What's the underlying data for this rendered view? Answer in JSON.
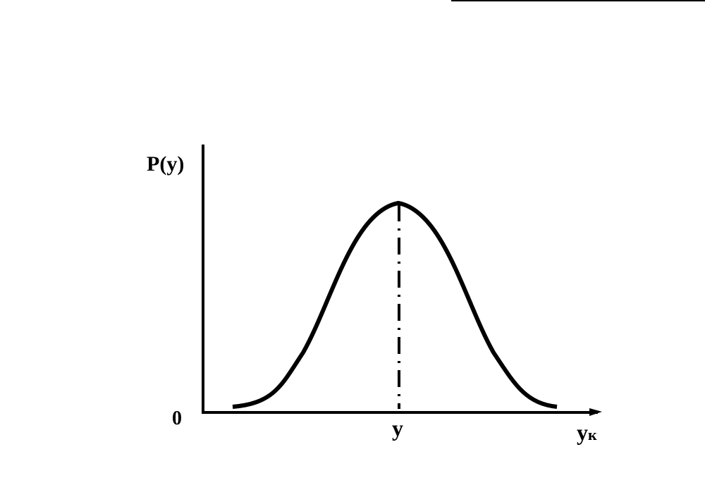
{
  "axes": {
    "y_label": "P(y)",
    "origin_label": "0",
    "x_label": {
      "main": "y",
      "sub": "к"
    }
  },
  "curve": {
    "peak_label": "y"
  }
}
